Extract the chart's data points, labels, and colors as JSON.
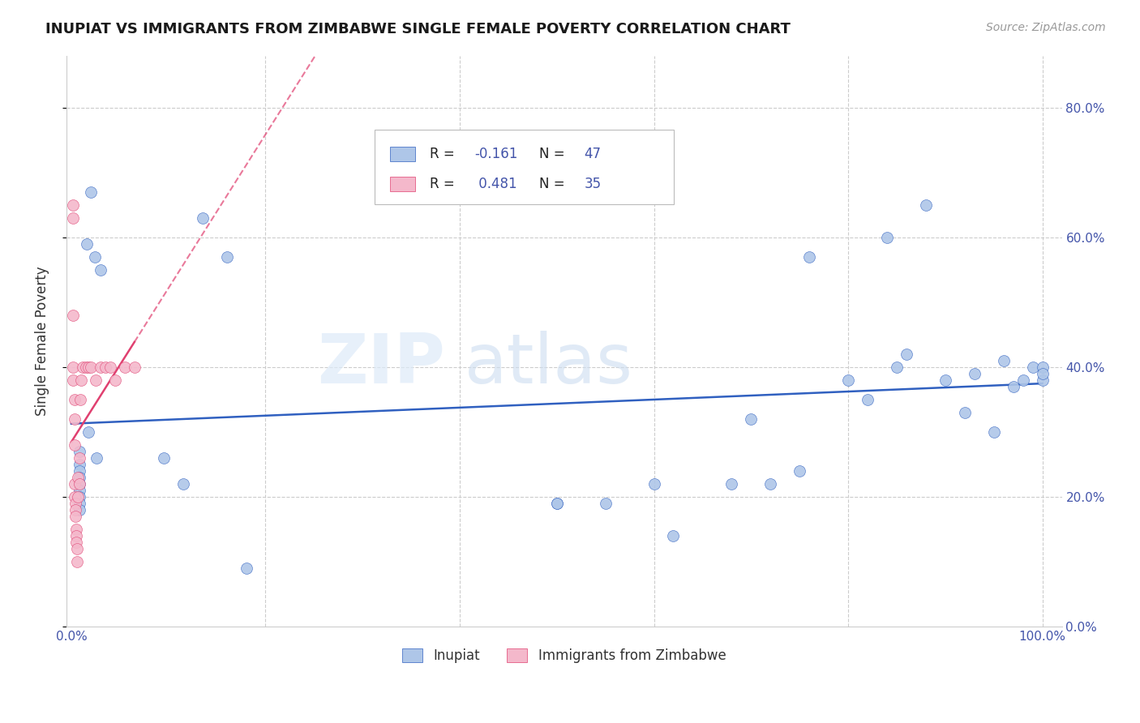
{
  "title": "INUPIAT VS IMMIGRANTS FROM ZIMBABWE SINGLE FEMALE POVERTY CORRELATION CHART",
  "source": "Source: ZipAtlas.com",
  "ylabel": "Single Female Poverty",
  "blue_color": "#aec6e8",
  "pink_color": "#f4b8cb",
  "line_blue": "#3060c0",
  "line_pink": "#e04070",
  "legend_label1": "R = -0.161   N = 47",
  "legend_label2": "R =  0.481   N = 35",
  "marker_size": 100,
  "inupiat_x": [
    0.008,
    0.008,
    0.008,
    0.008,
    0.008,
    0.008,
    0.008,
    0.008,
    0.008,
    0.016,
    0.02,
    0.024,
    0.03,
    0.018,
    0.026,
    0.095,
    0.115,
    0.135,
    0.16,
    0.5,
    0.6,
    0.62,
    0.7,
    0.72,
    0.75,
    0.8,
    0.82,
    0.84,
    0.85,
    0.86,
    0.88,
    0.9,
    0.92,
    0.93,
    0.95,
    0.96,
    0.97,
    0.98,
    0.99,
    1.0,
    1.0,
    1.0,
    0.76,
    0.68,
    0.55,
    0.5,
    0.18
  ],
  "inupiat_y": [
    0.27,
    0.25,
    0.24,
    0.23,
    0.22,
    0.21,
    0.2,
    0.19,
    0.18,
    0.59,
    0.67,
    0.57,
    0.55,
    0.3,
    0.26,
    0.26,
    0.22,
    0.63,
    0.57,
    0.19,
    0.22,
    0.14,
    0.32,
    0.22,
    0.24,
    0.38,
    0.35,
    0.6,
    0.4,
    0.42,
    0.65,
    0.38,
    0.33,
    0.39,
    0.3,
    0.41,
    0.37,
    0.38,
    0.4,
    0.38,
    0.4,
    0.39,
    0.57,
    0.22,
    0.19,
    0.19,
    0.09
  ],
  "zimbabwe_x": [
    0.002,
    0.002,
    0.002,
    0.002,
    0.002,
    0.003,
    0.003,
    0.003,
    0.003,
    0.003,
    0.004,
    0.004,
    0.004,
    0.005,
    0.005,
    0.005,
    0.006,
    0.006,
    0.007,
    0.007,
    0.008,
    0.008,
    0.009,
    0.01,
    0.012,
    0.015,
    0.018,
    0.02,
    0.025,
    0.03,
    0.035,
    0.04,
    0.045,
    0.055,
    0.065
  ],
  "zimbabwe_y": [
    0.65,
    0.63,
    0.48,
    0.4,
    0.38,
    0.35,
    0.32,
    0.28,
    0.22,
    0.2,
    0.19,
    0.18,
    0.17,
    0.15,
    0.14,
    0.13,
    0.12,
    0.1,
    0.23,
    0.2,
    0.26,
    0.22,
    0.35,
    0.38,
    0.4,
    0.4,
    0.4,
    0.4,
    0.38,
    0.4,
    0.4,
    0.4,
    0.38,
    0.4,
    0.4
  ],
  "watermark_zip": "ZIP",
  "watermark_atlas": "atlas",
  "xlim": [
    -0.005,
    1.02
  ],
  "ylim": [
    0.0,
    0.88
  ],
  "yticks": [
    0.0,
    0.2,
    0.4,
    0.6,
    0.8
  ],
  "ytick_labels_right": [
    "0.0%",
    "20.0%",
    "40.0%",
    "60.0%",
    "80.0%"
  ],
  "xtick_labels": [
    "0.0%",
    "100.0%"
  ],
  "grid_color": "#cccccc",
  "tick_color": "#4455aa",
  "title_fontsize": 13,
  "axis_label_fontsize": 11,
  "source_color": "#999999"
}
